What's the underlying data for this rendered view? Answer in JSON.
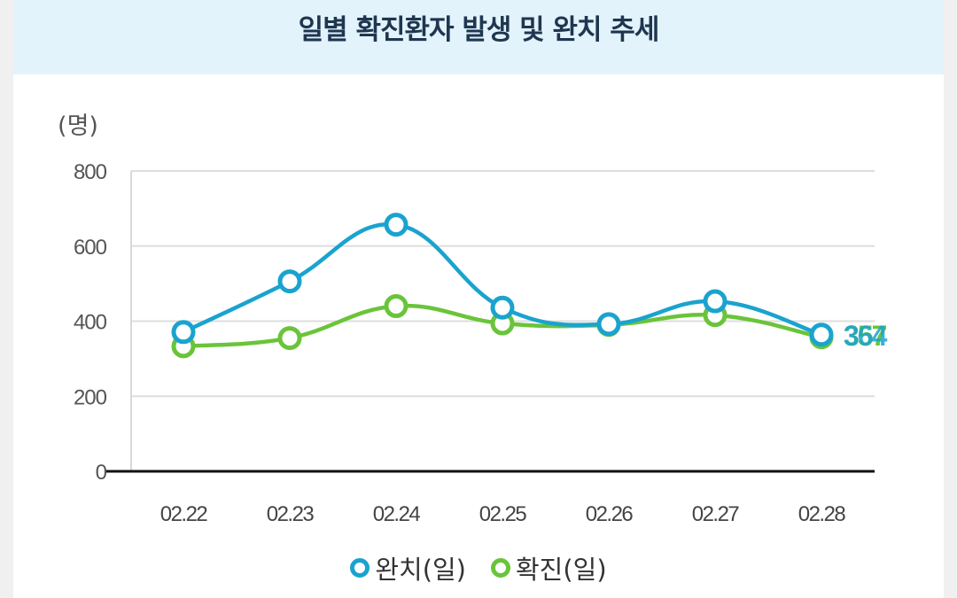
{
  "title": "일별 확진환자 발생 및 완치 추세",
  "chart_data": {
    "type": "line",
    "title": "일별 확진환자 발생 및 완치 추세",
    "ylabel": "(명)",
    "xlabel": "",
    "ylim": [
      0,
      800
    ],
    "yticks": [
      "800",
      "600",
      "400",
      "200",
      "0"
    ],
    "categories": [
      "02.22",
      "02.23",
      "02.24",
      "02.25",
      "02.26",
      "02.27",
      "02.28"
    ],
    "series": [
      {
        "name": "완치(일)",
        "color": "#1aa3cf",
        "values": [
          371,
          506,
          657,
          436,
          392,
          453,
          364
        ]
      },
      {
        "name": "확진(일)",
        "color": "#6ac43a",
        "values": [
          333,
          355,
          440,
          394,
          390,
          416,
          357
        ]
      }
    ],
    "end_labels": [
      "364",
      "357"
    ]
  }
}
